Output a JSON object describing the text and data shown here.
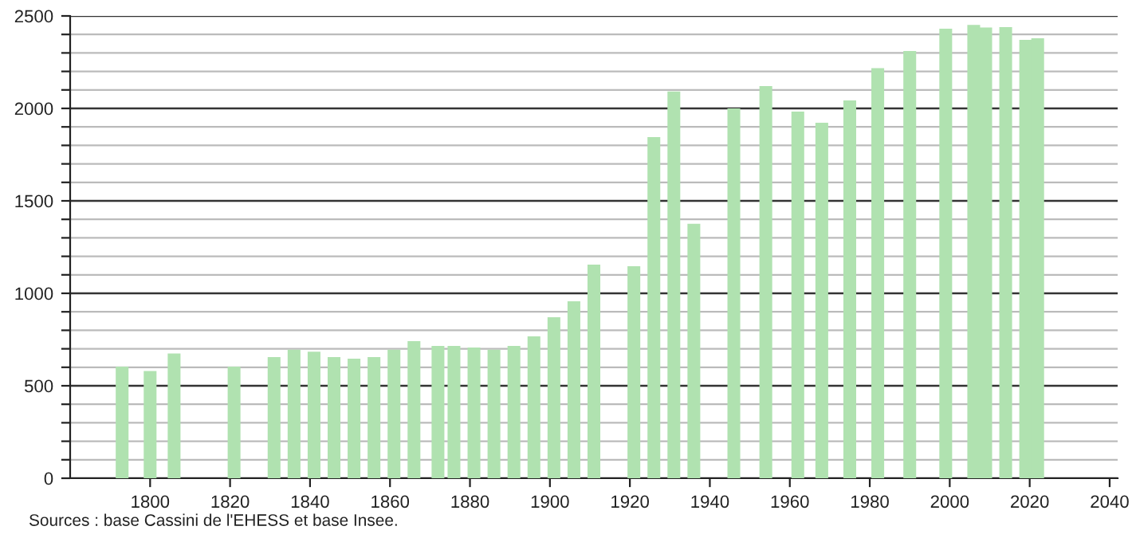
{
  "chart_data": {
    "type": "bar",
    "x": [
      1793,
      1800,
      1806,
      1821,
      1831,
      1836,
      1841,
      1846,
      1851,
      1856,
      1861,
      1866,
      1872,
      1876,
      1881,
      1886,
      1891,
      1896,
      1901,
      1906,
      1911,
      1921,
      1926,
      1931,
      1936,
      1946,
      1954,
      1962,
      1968,
      1975,
      1982,
      1990,
      1999,
      2006,
      2009,
      2014,
      2019,
      2022
    ],
    "values": [
      603,
      580,
      675,
      603,
      655,
      695,
      684,
      655,
      647,
      655,
      695,
      741,
      716,
      716,
      707,
      695,
      716,
      767,
      871,
      957,
      1155,
      1147,
      1845,
      2092,
      1376,
      2000,
      2121,
      1983,
      1922,
      2043,
      2218,
      2310,
      2431,
      2451,
      2437,
      2440,
      2371,
      2379
    ],
    "color": "#b0e2b0",
    "xlim": [
      1780,
      2042
    ],
    "xticks": [
      1800,
      1820,
      1840,
      1860,
      1880,
      1900,
      1920,
      1940,
      1960,
      1980,
      2000,
      2020,
      2040
    ],
    "ylim": [
      0,
      2500
    ],
    "yticks": [
      0,
      {
        "value": 100,
        "label": null
      },
      {
        "value": 200,
        "label": null
      },
      {
        "value": 300,
        "label": null
      },
      {
        "value": 400,
        "label": null
      },
      500,
      {
        "value": 600,
        "label": null
      },
      {
        "value": 700,
        "label": null
      },
      {
        "value": 800,
        "label": null
      },
      {
        "value": 900,
        "label": null
      },
      1000,
      {
        "value": 1100,
        "label": null
      },
      {
        "value": 1200,
        "label": null
      },
      {
        "value": 1300,
        "label": null
      },
      {
        "value": 1400,
        "label": null
      },
      1500,
      {
        "value": 1600,
        "label": null
      },
      {
        "value": 1700,
        "label": null
      },
      {
        "value": 1800,
        "label": null
      },
      {
        "value": 1900,
        "label": null
      },
      2000,
      {
        "value": 2100,
        "label": null
      },
      {
        "value": 2200,
        "label": null
      },
      {
        "value": 2300,
        "label": null
      },
      {
        "value": 2400,
        "label": null
      },
      2500
    ],
    "grid": "y",
    "annotations": [
      "Sources : base Cassini de l'EHESS et base Insee."
    ]
  }
}
